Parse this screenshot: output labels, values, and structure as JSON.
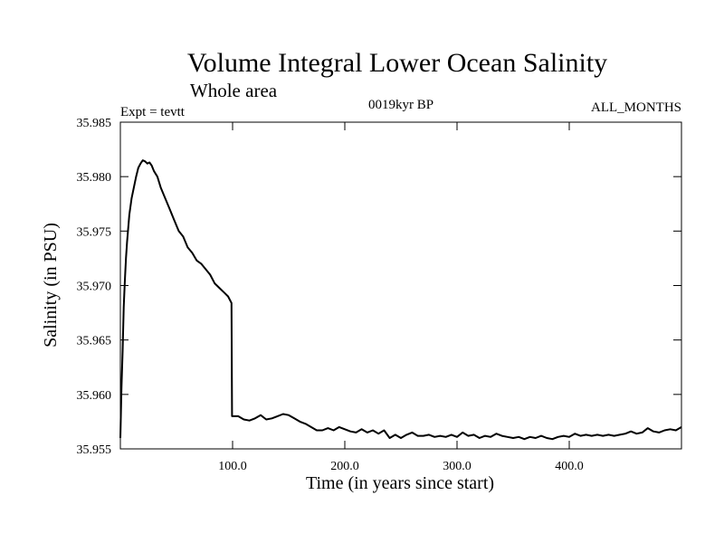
{
  "chart_data": {
    "type": "line",
    "title": "Volume Integral Lower Ocean Salinity",
    "subtitle": "Whole area",
    "annotations": {
      "experiment": "Expt = tevtt",
      "period": "0019kyr BP",
      "months": "ALL_MONTHS"
    },
    "xlabel": "Time (in years since start)",
    "ylabel": "Salinity (in PSU)",
    "xlim": [
      0,
      500
    ],
    "ylim": [
      35.955,
      35.985
    ],
    "x_ticks": [
      100,
      200,
      300,
      400
    ],
    "x_tick_labels": [
      "100.0",
      "200.0",
      "300.0",
      "400.0"
    ],
    "y_ticks": [
      35.955,
      35.96,
      35.965,
      35.97,
      35.975,
      35.98,
      35.985
    ],
    "y_tick_labels": [
      "35.955",
      "35.960",
      "35.965",
      "35.970",
      "35.975",
      "35.980",
      "35.985"
    ],
    "grid": false,
    "line_color": "#000000",
    "series": [
      {
        "x": [
          0,
          1,
          2,
          3,
          4,
          5,
          6,
          8,
          10,
          12,
          14,
          16,
          18,
          20,
          22,
          24,
          26,
          28,
          30,
          33,
          36,
          40,
          44,
          48,
          52,
          56,
          60,
          64,
          68,
          72,
          76,
          80,
          84,
          88,
          92,
          96,
          99,
          99.5,
          100,
          101,
          105,
          110,
          115,
          120,
          125,
          130,
          135,
          140,
          145,
          150,
          155,
          160,
          165,
          170,
          175,
          180,
          185,
          190,
          195,
          200,
          205,
          210,
          215,
          220,
          225,
          230,
          235,
          240,
          245,
          250,
          255,
          260,
          265,
          270,
          275,
          280,
          285,
          290,
          295,
          300,
          305,
          310,
          315,
          320,
          325,
          330,
          335,
          340,
          345,
          350,
          355,
          360,
          365,
          370,
          375,
          380,
          385,
          390,
          395,
          400,
          405,
          410,
          415,
          420,
          425,
          430,
          435,
          440,
          445,
          450,
          455,
          460,
          465,
          470,
          475,
          480,
          485,
          490,
          495,
          500
        ],
        "y": [
          35.956,
          35.9605,
          35.964,
          35.968,
          35.9705,
          35.9725,
          35.974,
          35.9765,
          35.978,
          35.979,
          35.98,
          35.9808,
          35.9812,
          35.9815,
          35.9814,
          35.9812,
          35.9813,
          35.981,
          35.9805,
          35.98,
          35.979,
          35.978,
          35.977,
          35.976,
          35.975,
          35.9745,
          35.9735,
          35.973,
          35.9723,
          35.972,
          35.9715,
          35.971,
          35.9702,
          35.9698,
          35.9694,
          35.969,
          35.9684,
          35.958,
          35.958,
          35.958,
          35.958,
          35.9577,
          35.9576,
          35.9578,
          35.9581,
          35.9577,
          35.9578,
          35.958,
          35.9582,
          35.9581,
          35.9578,
          35.9575,
          35.9573,
          35.957,
          35.9567,
          35.9567,
          35.9569,
          35.9567,
          35.957,
          35.9568,
          35.9566,
          35.9565,
          35.9568,
          35.9565,
          35.9567,
          35.9564,
          35.9567,
          35.956,
          35.9563,
          35.956,
          35.9563,
          35.9565,
          35.9562,
          35.9562,
          35.9563,
          35.9561,
          35.9562,
          35.9561,
          35.9563,
          35.9561,
          35.9565,
          35.9562,
          35.9563,
          35.956,
          35.9562,
          35.9561,
          35.9564,
          35.9562,
          35.9561,
          35.956,
          35.9561,
          35.9559,
          35.9561,
          35.956,
          35.9562,
          35.956,
          35.9559,
          35.9561,
          35.9562,
          35.9561,
          35.9564,
          35.9562,
          35.9563,
          35.9562,
          35.9563,
          35.9562,
          35.9563,
          35.9562,
          35.9563,
          35.9564,
          35.9566,
          35.9564,
          35.9565,
          35.9569,
          35.9566,
          35.9565,
          35.9567,
          35.9568,
          35.9567,
          35.957
        ]
      }
    ]
  }
}
